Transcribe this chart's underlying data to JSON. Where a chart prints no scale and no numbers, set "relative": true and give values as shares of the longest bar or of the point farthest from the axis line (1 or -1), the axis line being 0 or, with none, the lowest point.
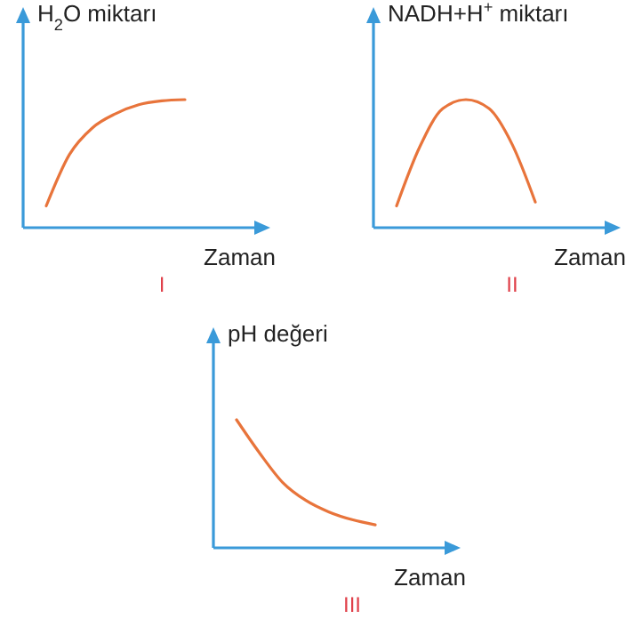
{
  "chart_data": [
    {
      "type": "line",
      "relative": true,
      "ylabel": "H$_{2}$O miktarı",
      "xlabel": "Zaman",
      "annotations": [
        "I"
      ],
      "categories": [
        null,
        null,
        null,
        null,
        null,
        null,
        null,
        null,
        null,
        null,
        null
      ],
      "series": [
        {
          "color": "#e8743b",
          "values": [
            null,
            0.17,
            0.57,
            0.78,
            0.89,
            0.96,
            0.99,
            1,
            null,
            null,
            null
          ]
        }
      ]
    },
    {
      "type": "line",
      "relative": true,
      "ylabel": "NADH+H$^{+}$ miktarı",
      "xlabel": "Zaman",
      "annotations": [
        "II"
      ],
      "categories": [
        null,
        null,
        null,
        null,
        null,
        null,
        null,
        null,
        null,
        null,
        null
      ],
      "series": [
        {
          "color": "#e8743b",
          "values": [
            null,
            0.17,
            0.63,
            0.93,
            1,
            0.93,
            0.65,
            0.2,
            null,
            null,
            null
          ]
        }
      ]
    },
    {
      "type": "line",
      "relative": true,
      "ylabel": "pH değeri",
      "xlabel": "Zaman",
      "annotations": [
        "III"
      ],
      "categories": [
        null,
        null,
        null,
        null,
        null,
        null,
        null,
        null,
        null,
        null,
        null
      ],
      "series": [
        {
          "color": "#e8743b",
          "values": [
            null,
            1,
            0.74,
            0.51,
            0.37,
            0.28,
            0.22,
            0.18,
            null,
            null,
            null
          ]
        }
      ]
    }
  ]
}
